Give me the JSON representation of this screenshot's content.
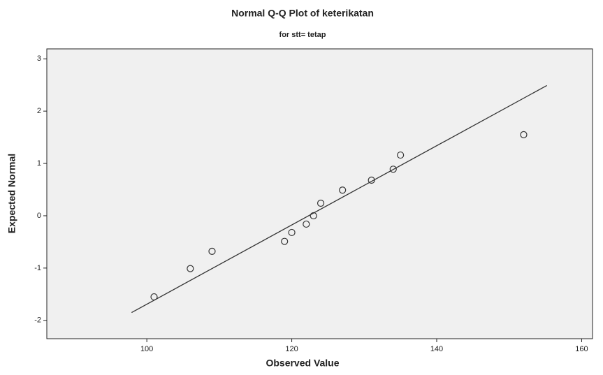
{
  "chart_data": {
    "type": "scatter",
    "title": "Normal Q-Q Plot of keterikatan",
    "subtitle": "for stt= tetap",
    "x_label": "Observed Value",
    "y_label": "Expected Normal",
    "x": [
      101,
      106,
      109,
      119,
      120,
      122,
      123,
      124,
      127,
      131,
      134,
      135,
      152
    ],
    "values": [
      -1.55,
      -1.01,
      -0.68,
      -0.49,
      -0.32,
      -0.16,
      0,
      0.24,
      0.49,
      0.68,
      0.89,
      1.16,
      1.55
    ],
    "line": {
      "x": [
        97.9,
        155.2
      ],
      "y": [
        -1.85,
        2.49
      ]
    },
    "xlim": [
      86.2,
      161.5
    ],
    "ylim": [
      -2.35,
      3.19
    ],
    "xticks": [
      100,
      120,
      140,
      160
    ],
    "yticks": [
      -2,
      -1,
      0,
      1,
      2,
      3
    ],
    "color": "#333333"
  }
}
